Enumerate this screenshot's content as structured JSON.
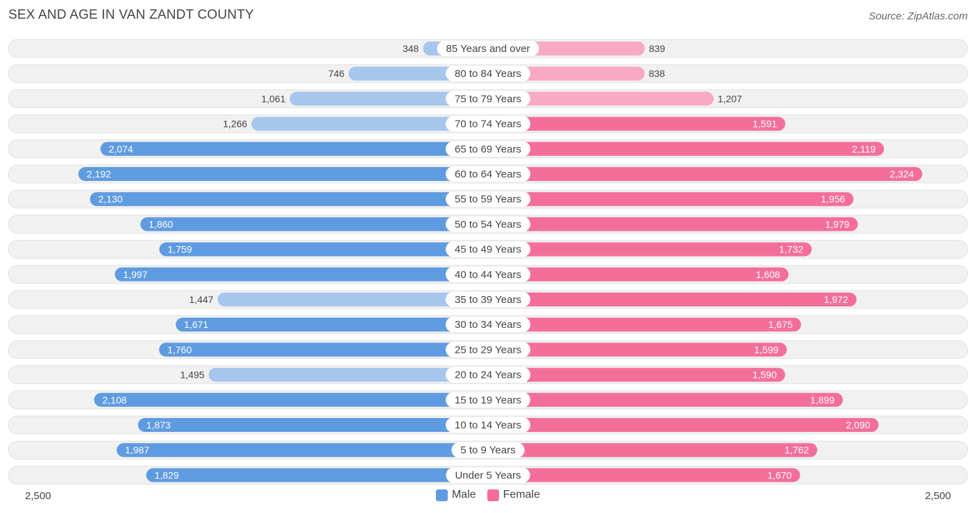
{
  "title": "SEX AND AGE IN VAN ZANDT COUNTY",
  "source": "Source: ZipAtlas.com",
  "colors": {
    "male_strong": "#5f9be0",
    "male_light": "#a6c6ee",
    "female_strong": "#f36f9a",
    "female_light": "#f8a9c4",
    "row_bg": "#f1f1f1"
  },
  "chart_data": {
    "type": "bar",
    "orientation": "horizontal-diverging",
    "categories": [
      "85 Years and over",
      "80 to 84 Years",
      "75 to 79 Years",
      "70 to 74 Years",
      "65 to 69 Years",
      "60 to 64 Years",
      "55 to 59 Years",
      "50 to 54 Years",
      "45 to 49 Years",
      "40 to 44 Years",
      "35 to 39 Years",
      "30 to 34 Years",
      "25 to 29 Years",
      "20 to 24 Years",
      "15 to 19 Years",
      "10 to 14 Years",
      "5 to 9 Years",
      "Under 5 Years"
    ],
    "series": [
      {
        "name": "Male",
        "values": [
          348,
          746,
          1061,
          1266,
          2074,
          2192,
          2130,
          1860,
          1759,
          1997,
          1447,
          1671,
          1760,
          1495,
          2108,
          1873,
          1987,
          1829
        ]
      },
      {
        "name": "Female",
        "values": [
          839,
          838,
          1207,
          1591,
          2119,
          2324,
          1956,
          1979,
          1732,
          1608,
          1972,
          1675,
          1599,
          1590,
          1899,
          2090,
          1762,
          1670
        ]
      }
    ],
    "value_labels": {
      "male": [
        "348",
        "746",
        "1,061",
        "1,266",
        "2,074",
        "2,192",
        "2,130",
        "1,860",
        "1,759",
        "1,997",
        "1,447",
        "1,671",
        "1,760",
        "1,495",
        "2,108",
        "1,873",
        "1,987",
        "1,829"
      ],
      "female": [
        "839",
        "838",
        "1,207",
        "1,591",
        "2,119",
        "2,324",
        "1,956",
        "1,979",
        "1,732",
        "1,608",
        "1,972",
        "1,675",
        "1,599",
        "1,590",
        "1,899",
        "2,090",
        "1,762",
        "1,670"
      ]
    },
    "xlim": [
      -2500,
      2500
    ],
    "axis_tick_labels": {
      "left": "2,500",
      "right": "2,500"
    },
    "legend": [
      "Male",
      "Female"
    ],
    "legend_position": "bottom-center",
    "grid": false
  }
}
